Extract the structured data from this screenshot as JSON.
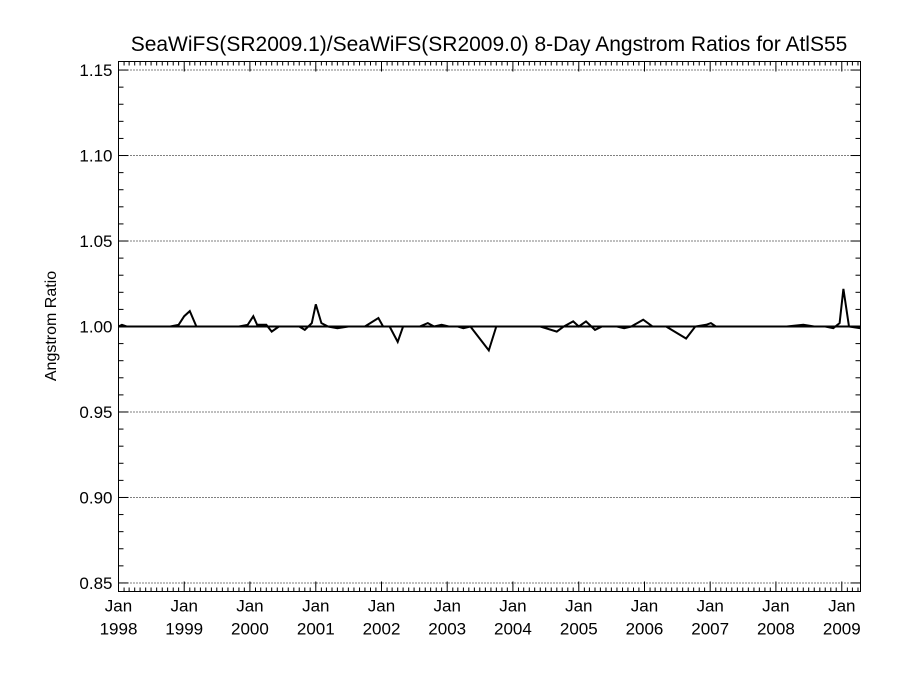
{
  "chart_data": {
    "type": "line",
    "title": "SeaWiFS(SR2009.1)/SeaWiFS(SR2009.0) 8-Day Angstrom Ratios for AtlS55",
    "xlabel": "",
    "ylabel": "Angstrom Ratio",
    "xlim": [
      "1998-01-01",
      "2009-04-15"
    ],
    "ylim": [
      0.845,
      1.155
    ],
    "y_ticks": [
      0.85,
      0.9,
      0.95,
      1.0,
      1.05,
      1.1,
      1.15
    ],
    "y_tick_labels": [
      "0.85",
      "0.90",
      "0.95",
      "1.00",
      "1.05",
      "1.10",
      "1.15"
    ],
    "x_ticks": [
      {
        "date": "1998-01-01",
        "month": "Jan",
        "year": "1998"
      },
      {
        "date": "1999-01-01",
        "month": "Jan",
        "year": "1999"
      },
      {
        "date": "2000-01-01",
        "month": "Jan",
        "year": "2000"
      },
      {
        "date": "2001-01-01",
        "month": "Jan",
        "year": "2001"
      },
      {
        "date": "2002-01-01",
        "month": "Jan",
        "year": "2002"
      },
      {
        "date": "2003-01-01",
        "month": "Jan",
        "year": "2003"
      },
      {
        "date": "2004-01-01",
        "month": "Jan",
        "year": "2004"
      },
      {
        "date": "2005-01-01",
        "month": "Jan",
        "year": "2005"
      },
      {
        "date": "2006-01-01",
        "month": "Jan",
        "year": "2006"
      },
      {
        "date": "2007-01-01",
        "month": "Jan",
        "year": "2007"
      },
      {
        "date": "2008-01-01",
        "month": "Jan",
        "year": "2008"
      },
      {
        "date": "2009-01-01",
        "month": "Jan",
        "year": "2009"
      }
    ],
    "reference_line": 1.0,
    "grid": "horizontal dotted",
    "series": [
      {
        "color": "#000000",
        "points": [
          [
            "1998-01-01",
            1.0
          ],
          [
            "1998-01-20",
            1.001
          ],
          [
            "1998-02-15",
            1.0
          ],
          [
            "1998-06-01",
            1.0
          ],
          [
            "1998-10-15",
            1.0
          ],
          [
            "1998-12-01",
            1.001
          ],
          [
            "1999-01-01",
            1.006
          ],
          [
            "1999-02-01",
            1.009
          ],
          [
            "1999-03-10",
            1.0
          ],
          [
            "1999-05-01",
            1.0
          ],
          [
            "1999-08-01",
            1.0
          ],
          [
            "1999-11-01",
            1.0
          ],
          [
            "1999-12-20",
            1.001
          ],
          [
            "2000-01-20",
            1.006
          ],
          [
            "2000-02-10",
            1.001
          ],
          [
            "2000-04-01",
            1.001
          ],
          [
            "2000-05-01",
            0.997
          ],
          [
            "2000-06-10",
            1.0
          ],
          [
            "2000-09-01",
            1.0
          ],
          [
            "2000-10-01",
            1.0
          ],
          [
            "2000-11-01",
            0.998
          ],
          [
            "2000-12-10",
            1.002
          ],
          [
            "2001-01-01",
            1.013
          ],
          [
            "2001-02-01",
            1.002
          ],
          [
            "2001-03-10",
            1.0
          ],
          [
            "2001-05-01",
            0.999
          ],
          [
            "2001-07-01",
            1.0
          ],
          [
            "2001-10-01",
            1.0
          ],
          [
            "2001-12-15",
            1.005
          ],
          [
            "2002-01-10",
            1.0
          ],
          [
            "2002-02-15",
            1.0
          ],
          [
            "2002-04-01",
            0.991
          ],
          [
            "2002-05-01",
            1.0
          ],
          [
            "2002-08-01",
            1.0
          ],
          [
            "2002-09-15",
            1.002
          ],
          [
            "2002-10-20",
            1.0
          ],
          [
            "2002-12-01",
            1.001
          ],
          [
            "2003-01-10",
            1.0
          ],
          [
            "2003-03-01",
            1.0
          ],
          [
            "2003-04-01",
            0.999
          ],
          [
            "2003-05-10",
            1.0
          ],
          [
            "2003-08-20",
            0.986
          ],
          [
            "2003-10-01",
            1.0
          ],
          [
            "2004-01-01",
            1.0
          ],
          [
            "2004-03-01",
            1.0
          ],
          [
            "2004-06-01",
            1.0
          ],
          [
            "2004-09-01",
            0.997
          ],
          [
            "2004-10-10",
            1.0
          ],
          [
            "2004-12-01",
            1.003
          ],
          [
            "2005-01-01",
            1.0
          ],
          [
            "2005-02-10",
            1.003
          ],
          [
            "2005-04-01",
            0.998
          ],
          [
            "2005-05-10",
            1.0
          ],
          [
            "2005-08-01",
            1.0
          ],
          [
            "2005-09-10",
            0.999
          ],
          [
            "2005-10-20",
            1.0
          ],
          [
            "2005-12-25",
            1.004
          ],
          [
            "2006-02-15",
            1.0
          ],
          [
            "2006-05-01",
            1.0
          ],
          [
            "2006-08-20",
            0.993
          ],
          [
            "2006-10-10",
            1.0
          ],
          [
            "2006-12-10",
            1.001
          ],
          [
            "2007-01-05",
            1.002
          ],
          [
            "2007-02-01",
            1.0
          ],
          [
            "2007-06-01",
            1.0
          ],
          [
            "2007-10-01",
            1.0
          ],
          [
            "2008-03-01",
            1.0
          ],
          [
            "2008-06-01",
            1.001
          ],
          [
            "2008-08-01",
            1.0
          ],
          [
            "2008-10-01",
            1.0
          ],
          [
            "2008-11-15",
            0.999
          ],
          [
            "2008-12-20",
            1.002
          ],
          [
            "2009-01-10",
            1.022
          ],
          [
            "2009-02-10",
            1.0
          ],
          [
            "2009-04-15",
            0.999
          ]
        ]
      }
    ]
  }
}
